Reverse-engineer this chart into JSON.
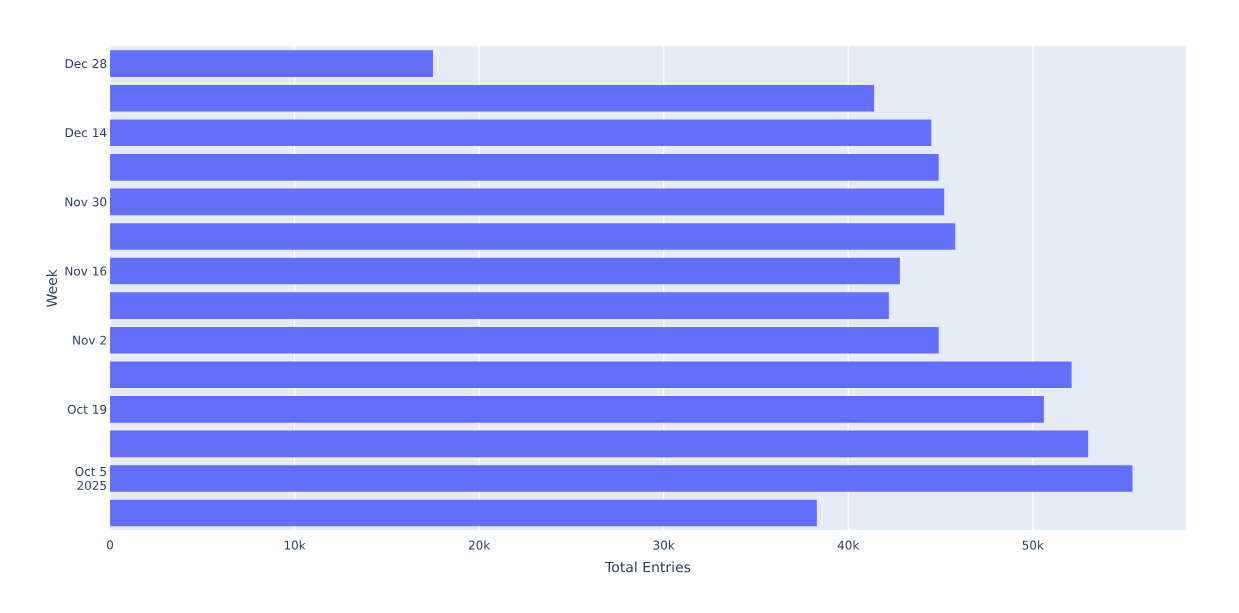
{
  "chart_data": {
    "type": "bar",
    "orientation": "horizontal",
    "xlabel": "Total Entries",
    "ylabel": "Week",
    "categories": [
      "Dec 28",
      null,
      "Dec 14",
      null,
      "Nov 30",
      null,
      "Nov 16",
      null,
      "Nov 2",
      null,
      "Oct 19",
      null,
      "Oct 5 2025",
      null
    ],
    "values": [
      17500,
      41400,
      44500,
      44900,
      45200,
      45800,
      42800,
      42200,
      44900,
      52100,
      50600,
      53000,
      55400,
      38300
    ],
    "color": "#636efa",
    "xlim": [
      0,
      58300
    ],
    "xticks": [
      0,
      {
        "value": 10000,
        "label": "10k"
      },
      {
        "value": 20000,
        "label": "20k"
      },
      {
        "value": 30000,
        "label": "30k"
      },
      {
        "value": 40000,
        "label": "40k"
      },
      {
        "value": 50000,
        "label": "50k"
      }
    ],
    "grid": "x"
  }
}
